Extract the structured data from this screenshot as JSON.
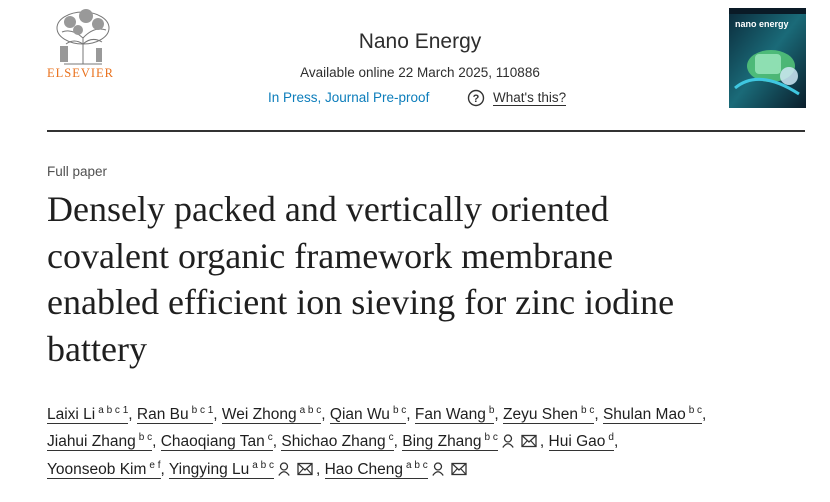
{
  "header": {
    "publisher": "ELSEVIER",
    "journal": "Nano Energy",
    "availability": "Available online 22 March 2025, 110886",
    "status": "In Press, Journal Pre-proof",
    "help_icon": "?",
    "help": "What's this?",
    "cover_title": "nano energy"
  },
  "article": {
    "kind": "Full paper",
    "title_lines": [
      "Densely packed and vertically oriented",
      "covalent organic framework membrane",
      "enabled efficient ion sieving for zinc iodine",
      "battery"
    ],
    "separator": ",",
    "authors": [
      {
        "name": "Laixi Li",
        "sup": "a b c 1"
      },
      {
        "name": "Ran Bu",
        "sup": "b c 1"
      },
      {
        "name": "Wei Zhong",
        "sup": "a b c"
      },
      {
        "name": "Qian Wu",
        "sup": "b c"
      },
      {
        "name": "Fan Wang",
        "sup": "b"
      },
      {
        "name": "Zeyu Shen",
        "sup": "b c"
      },
      {
        "name": "Shulan Mao",
        "sup": "b c"
      },
      {
        "name": "Jiahui Zhang",
        "sup": "b c"
      },
      {
        "name": "Chaoqiang Tan",
        "sup": "c"
      },
      {
        "name": "Shichao Zhang",
        "sup": "c"
      },
      {
        "name": "Bing Zhang",
        "sup": "b c"
      },
      {
        "name": "Hui Gao",
        "sup": "d"
      },
      {
        "name": "Yoonseob Kim",
        "sup": "e f"
      },
      {
        "name": "Yingying Lu",
        "sup": "a b c"
      },
      {
        "name": "Hao Cheng",
        "sup": "a b c"
      }
    ]
  }
}
